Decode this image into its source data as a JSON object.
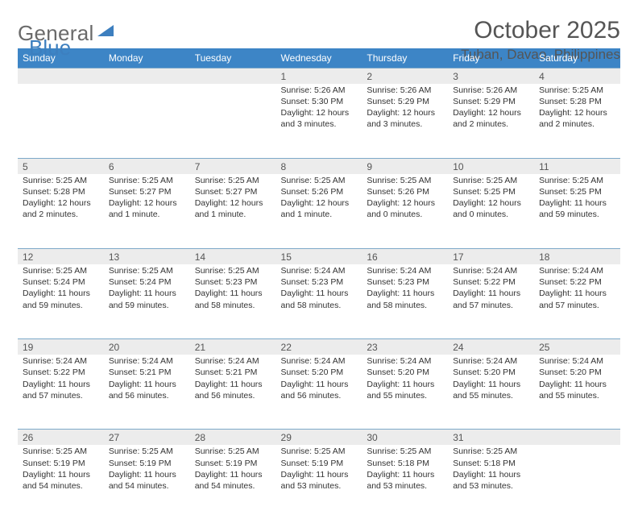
{
  "logo": {
    "general": "General",
    "blue": "Blue"
  },
  "title": "October 2025",
  "location": "Tuban, Davao, Philippines",
  "colors": {
    "header_bg": "#3d85c6",
    "header_text": "#ffffff",
    "day_num_bg": "#ececec",
    "border": "#7da9c9",
    "text": "#333333",
    "title_text": "#555555",
    "logo_gray": "#6a6a6a",
    "logo_blue": "#3d7fbf",
    "background": "#ffffff"
  },
  "columns": [
    "Sunday",
    "Monday",
    "Tuesday",
    "Wednesday",
    "Thursday",
    "Friday",
    "Saturday"
  ],
  "weeks": [
    {
      "nums": [
        "",
        "",
        "",
        "1",
        "2",
        "3",
        "4"
      ],
      "cells": [
        null,
        null,
        null,
        {
          "sunrise": "Sunrise: 5:26 AM",
          "sunset": "Sunset: 5:30 PM",
          "day1": "Daylight: 12 hours",
          "day2": "and 3 minutes."
        },
        {
          "sunrise": "Sunrise: 5:26 AM",
          "sunset": "Sunset: 5:29 PM",
          "day1": "Daylight: 12 hours",
          "day2": "and 3 minutes."
        },
        {
          "sunrise": "Sunrise: 5:26 AM",
          "sunset": "Sunset: 5:29 PM",
          "day1": "Daylight: 12 hours",
          "day2": "and 2 minutes."
        },
        {
          "sunrise": "Sunrise: 5:25 AM",
          "sunset": "Sunset: 5:28 PM",
          "day1": "Daylight: 12 hours",
          "day2": "and 2 minutes."
        }
      ]
    },
    {
      "nums": [
        "5",
        "6",
        "7",
        "8",
        "9",
        "10",
        "11"
      ],
      "cells": [
        {
          "sunrise": "Sunrise: 5:25 AM",
          "sunset": "Sunset: 5:28 PM",
          "day1": "Daylight: 12 hours",
          "day2": "and 2 minutes."
        },
        {
          "sunrise": "Sunrise: 5:25 AM",
          "sunset": "Sunset: 5:27 PM",
          "day1": "Daylight: 12 hours",
          "day2": "and 1 minute."
        },
        {
          "sunrise": "Sunrise: 5:25 AM",
          "sunset": "Sunset: 5:27 PM",
          "day1": "Daylight: 12 hours",
          "day2": "and 1 minute."
        },
        {
          "sunrise": "Sunrise: 5:25 AM",
          "sunset": "Sunset: 5:26 PM",
          "day1": "Daylight: 12 hours",
          "day2": "and 1 minute."
        },
        {
          "sunrise": "Sunrise: 5:25 AM",
          "sunset": "Sunset: 5:26 PM",
          "day1": "Daylight: 12 hours",
          "day2": "and 0 minutes."
        },
        {
          "sunrise": "Sunrise: 5:25 AM",
          "sunset": "Sunset: 5:25 PM",
          "day1": "Daylight: 12 hours",
          "day2": "and 0 minutes."
        },
        {
          "sunrise": "Sunrise: 5:25 AM",
          "sunset": "Sunset: 5:25 PM",
          "day1": "Daylight: 11 hours",
          "day2": "and 59 minutes."
        }
      ]
    },
    {
      "nums": [
        "12",
        "13",
        "14",
        "15",
        "16",
        "17",
        "18"
      ],
      "cells": [
        {
          "sunrise": "Sunrise: 5:25 AM",
          "sunset": "Sunset: 5:24 PM",
          "day1": "Daylight: 11 hours",
          "day2": "and 59 minutes."
        },
        {
          "sunrise": "Sunrise: 5:25 AM",
          "sunset": "Sunset: 5:24 PM",
          "day1": "Daylight: 11 hours",
          "day2": "and 59 minutes."
        },
        {
          "sunrise": "Sunrise: 5:25 AM",
          "sunset": "Sunset: 5:23 PM",
          "day1": "Daylight: 11 hours",
          "day2": "and 58 minutes."
        },
        {
          "sunrise": "Sunrise: 5:24 AM",
          "sunset": "Sunset: 5:23 PM",
          "day1": "Daylight: 11 hours",
          "day2": "and 58 minutes."
        },
        {
          "sunrise": "Sunrise: 5:24 AM",
          "sunset": "Sunset: 5:23 PM",
          "day1": "Daylight: 11 hours",
          "day2": "and 58 minutes."
        },
        {
          "sunrise": "Sunrise: 5:24 AM",
          "sunset": "Sunset: 5:22 PM",
          "day1": "Daylight: 11 hours",
          "day2": "and 57 minutes."
        },
        {
          "sunrise": "Sunrise: 5:24 AM",
          "sunset": "Sunset: 5:22 PM",
          "day1": "Daylight: 11 hours",
          "day2": "and 57 minutes."
        }
      ]
    },
    {
      "nums": [
        "19",
        "20",
        "21",
        "22",
        "23",
        "24",
        "25"
      ],
      "cells": [
        {
          "sunrise": "Sunrise: 5:24 AM",
          "sunset": "Sunset: 5:22 PM",
          "day1": "Daylight: 11 hours",
          "day2": "and 57 minutes."
        },
        {
          "sunrise": "Sunrise: 5:24 AM",
          "sunset": "Sunset: 5:21 PM",
          "day1": "Daylight: 11 hours",
          "day2": "and 56 minutes."
        },
        {
          "sunrise": "Sunrise: 5:24 AM",
          "sunset": "Sunset: 5:21 PM",
          "day1": "Daylight: 11 hours",
          "day2": "and 56 minutes."
        },
        {
          "sunrise": "Sunrise: 5:24 AM",
          "sunset": "Sunset: 5:20 PM",
          "day1": "Daylight: 11 hours",
          "day2": "and 56 minutes."
        },
        {
          "sunrise": "Sunrise: 5:24 AM",
          "sunset": "Sunset: 5:20 PM",
          "day1": "Daylight: 11 hours",
          "day2": "and 55 minutes."
        },
        {
          "sunrise": "Sunrise: 5:24 AM",
          "sunset": "Sunset: 5:20 PM",
          "day1": "Daylight: 11 hours",
          "day2": "and 55 minutes."
        },
        {
          "sunrise": "Sunrise: 5:24 AM",
          "sunset": "Sunset: 5:20 PM",
          "day1": "Daylight: 11 hours",
          "day2": "and 55 minutes."
        }
      ]
    },
    {
      "nums": [
        "26",
        "27",
        "28",
        "29",
        "30",
        "31",
        ""
      ],
      "cells": [
        {
          "sunrise": "Sunrise: 5:25 AM",
          "sunset": "Sunset: 5:19 PM",
          "day1": "Daylight: 11 hours",
          "day2": "and 54 minutes."
        },
        {
          "sunrise": "Sunrise: 5:25 AM",
          "sunset": "Sunset: 5:19 PM",
          "day1": "Daylight: 11 hours",
          "day2": "and 54 minutes."
        },
        {
          "sunrise": "Sunrise: 5:25 AM",
          "sunset": "Sunset: 5:19 PM",
          "day1": "Daylight: 11 hours",
          "day2": "and 54 minutes."
        },
        {
          "sunrise": "Sunrise: 5:25 AM",
          "sunset": "Sunset: 5:19 PM",
          "day1": "Daylight: 11 hours",
          "day2": "and 53 minutes."
        },
        {
          "sunrise": "Sunrise: 5:25 AM",
          "sunset": "Sunset: 5:18 PM",
          "day1": "Daylight: 11 hours",
          "day2": "and 53 minutes."
        },
        {
          "sunrise": "Sunrise: 5:25 AM",
          "sunset": "Sunset: 5:18 PM",
          "day1": "Daylight: 11 hours",
          "day2": "and 53 minutes."
        },
        null
      ]
    }
  ]
}
